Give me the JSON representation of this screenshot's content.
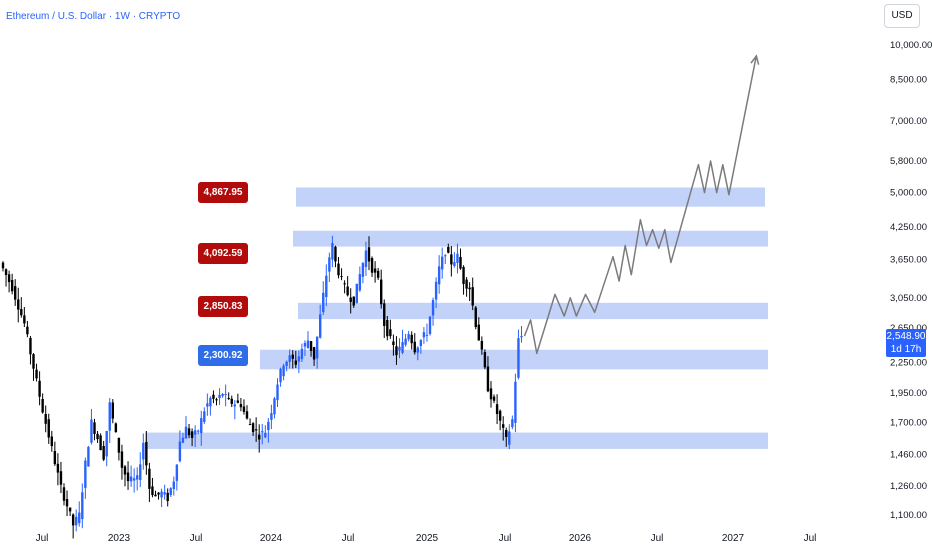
{
  "header": {
    "title": "Ethereum / U.S. Dollar · 1W · CRYPTO",
    "currency": "USD"
  },
  "last_price": {
    "value": "2,548.90",
    "countdown": "1d 17h"
  },
  "level_labels": [
    {
      "text": "4,867.95",
      "color": "#b20b0b"
    },
    {
      "text": "4,092.59",
      "color": "#b20b0b"
    },
    {
      "text": "2,850.83",
      "color": "#b20b0b"
    },
    {
      "text": "2,300.92",
      "color": "#2e6ce8"
    }
  ],
  "chart_data": {
    "type": "candlestick",
    "symbol": "ETHUSD",
    "interval": "1W",
    "y_scale": "log",
    "y_ticks": [
      {
        "value": 1100,
        "label": "1,100.00"
      },
      {
        "value": 1260,
        "label": "1,260.00"
      },
      {
        "value": 1460,
        "label": "1,460.00"
      },
      {
        "value": 1700,
        "label": "1,700.00"
      },
      {
        "value": 1950,
        "label": "1,950.00"
      },
      {
        "value": 2250,
        "label": "2,250.00"
      },
      {
        "value": 2650,
        "label": "2,650.00"
      },
      {
        "value": 3050,
        "label": "3,050.00"
      },
      {
        "value": 3650,
        "label": "3,650.00"
      },
      {
        "value": 4250,
        "label": "4,250.00"
      },
      {
        "value": 5000,
        "label": "5,000.00"
      },
      {
        "value": 5800,
        "label": "5,800.00"
      },
      {
        "value": 7000,
        "label": "7,000.00"
      },
      {
        "value": 8500,
        "label": "8,500.00"
      },
      {
        "value": 10000,
        "label": "10,000.00"
      }
    ],
    "x_ticks": [
      "Jul",
      "2023",
      "Jul",
      "2024",
      "Jul",
      "2025",
      "Jul",
      "2026",
      "Jul",
      "2027",
      "Jul"
    ],
    "zones": [
      {
        "low": 4680,
        "high": 5120,
        "label": "4,867.95"
      },
      {
        "low": 3880,
        "high": 4180,
        "label": "4,092.59"
      },
      {
        "low": 2760,
        "high": 2980,
        "label": "2,850.83"
      },
      {
        "low": 2180,
        "high": 2390,
        "label": "2,300.92"
      },
      {
        "low": 1500,
        "high": 1620
      }
    ],
    "price_path": [
      [
        0,
        3600
      ],
      [
        4,
        3200
      ],
      [
        8,
        2700
      ],
      [
        11,
        2200
      ],
      [
        14,
        1800
      ],
      [
        17,
        1500
      ],
      [
        20,
        1250
      ],
      [
        22,
        1150
      ],
      [
        24,
        1050
      ],
      [
        26,
        1100
      ],
      [
        28,
        1400
      ],
      [
        30,
        1700
      ],
      [
        32,
        1580
      ],
      [
        34,
        1450
      ],
      [
        36,
        1850
      ],
      [
        38,
        1600
      ],
      [
        40,
        1380
      ],
      [
        42,
        1290
      ],
      [
        45,
        1300
      ],
      [
        47,
        1550
      ],
      [
        49,
        1250
      ],
      [
        51,
        1200
      ],
      [
        53,
        1220
      ],
      [
        55,
        1190
      ],
      [
        57,
        1300
      ],
      [
        59,
        1550
      ],
      [
        61,
        1650
      ],
      [
        63,
        1580
      ],
      [
        65,
        1640
      ],
      [
        67,
        1800
      ],
      [
        69,
        1900
      ],
      [
        71,
        1880
      ],
      [
        73,
        1950
      ],
      [
        75,
        1870
      ],
      [
        77,
        1860
      ],
      [
        79,
        1850
      ],
      [
        81,
        1720
      ],
      [
        83,
        1650
      ],
      [
        85,
        1600
      ],
      [
        87,
        1630
      ],
      [
        89,
        1800
      ],
      [
        91,
        2050
      ],
      [
        93,
        2250
      ],
      [
        95,
        2300
      ],
      [
        97,
        2250
      ],
      [
        99,
        2400
      ],
      [
        101,
        2500
      ],
      [
        103,
        2300
      ],
      [
        105,
        2800
      ],
      [
        107,
        3400
      ],
      [
        108,
        3700
      ],
      [
        109,
        3900
      ],
      [
        110,
        3600
      ],
      [
        112,
        3300
      ],
      [
        114,
        3100
      ],
      [
        116,
        3000
      ],
      [
        118,
        3400
      ],
      [
        120,
        3800
      ],
      [
        122,
        3500
      ],
      [
        124,
        3300
      ],
      [
        126,
        2700
      ],
      [
        128,
        2500
      ],
      [
        130,
        2350
      ],
      [
        132,
        2450
      ],
      [
        134,
        2600
      ],
      [
        136,
        2400
      ],
      [
        138,
        2500
      ],
      [
        140,
        2600
      ],
      [
        142,
        3000
      ],
      [
        144,
        3500
      ],
      [
        146,
        3800
      ],
      [
        148,
        3600
      ],
      [
        150,
        3700
      ],
      [
        152,
        3300
      ],
      [
        154,
        3200
      ],
      [
        156,
        2700
      ],
      [
        158,
        2350
      ],
      [
        160,
        2000
      ],
      [
        162,
        1850
      ],
      [
        164,
        1700
      ],
      [
        166,
        1560
      ],
      [
        168,
        1720
      ],
      [
        170,
        2500
      ],
      [
        171,
        2549
      ]
    ],
    "projection_path": [
      [
        171,
        2549
      ],
      [
        173,
        2750
      ],
      [
        175,
        2350
      ],
      [
        181,
        3100
      ],
      [
        184,
        2800
      ],
      [
        186,
        3050
      ],
      [
        188,
        2800
      ],
      [
        191,
        3100
      ],
      [
        194,
        2850
      ],
      [
        200,
        3700
      ],
      [
        202,
        3300
      ],
      [
        204,
        3900
      ],
      [
        206,
        3400
      ],
      [
        209,
        4400
      ],
      [
        211,
        3900
      ],
      [
        213,
        4200
      ],
      [
        215,
        3850
      ],
      [
        217,
        4200
      ],
      [
        219,
        3600
      ],
      [
        228,
        5700
      ],
      [
        230,
        5000
      ],
      [
        232,
        5800
      ],
      [
        234,
        5000
      ],
      [
        236,
        5700
      ],
      [
        238,
        4950
      ],
      [
        247,
        9500
      ]
    ],
    "last_value": 2548.9
  }
}
